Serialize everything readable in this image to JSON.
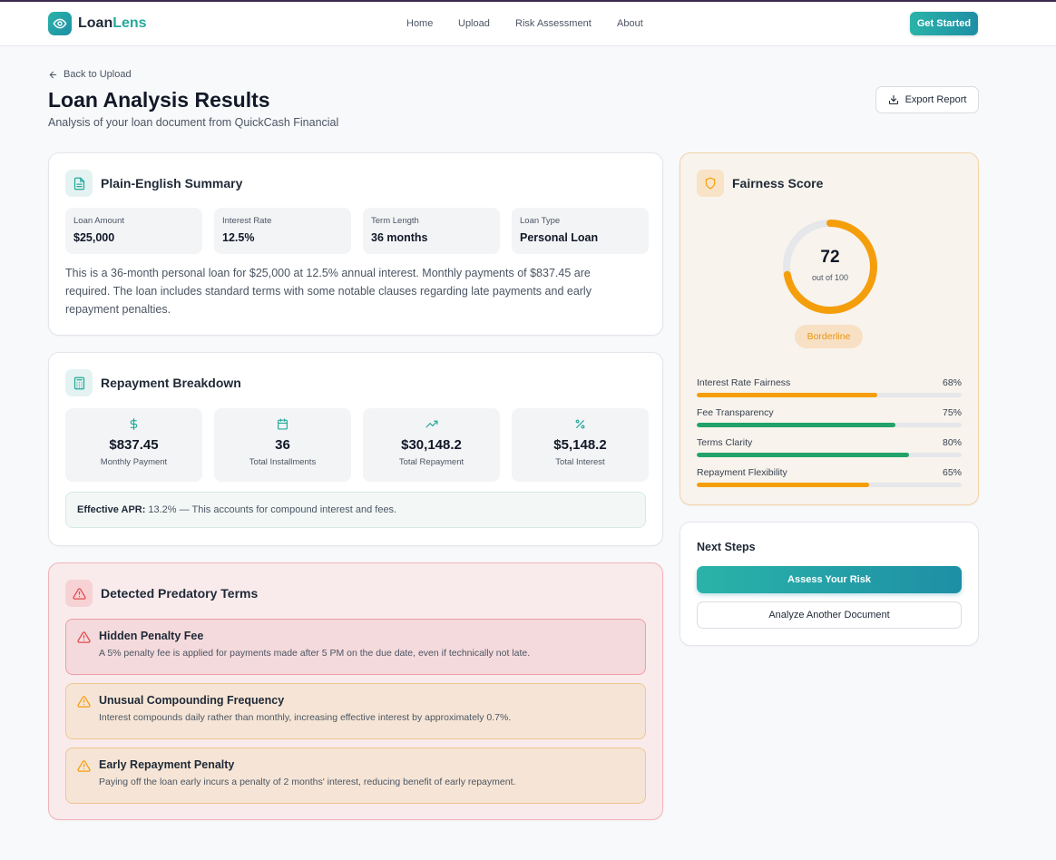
{
  "nav": {
    "brand_first": "Loan",
    "brand_second": "Lens",
    "links": [
      "Home",
      "Upload",
      "Risk Assessment",
      "About"
    ],
    "cta": "Get Started"
  },
  "header": {
    "back": "Back to Upload",
    "title": "Loan Analysis Results",
    "subtitle": "Analysis of your loan document from QuickCash Financial",
    "export": "Export Report"
  },
  "summary": {
    "title": "Plain-English Summary",
    "stats": [
      {
        "label": "Loan Amount",
        "value": "$25,000"
      },
      {
        "label": "Interest Rate",
        "value": "12.5%"
      },
      {
        "label": "Term Length",
        "value": "36 months"
      },
      {
        "label": "Loan Type",
        "value": "Personal Loan"
      }
    ],
    "text": "This is a 36-month personal loan for $25,000 at 12.5% annual interest. Monthly payments of $837.45 are required. The loan includes standard terms with some notable clauses regarding late payments and early repayment penalties."
  },
  "repayment": {
    "title": "Repayment Breakdown",
    "items": [
      {
        "icon": "dollar-icon",
        "value": "$837.45",
        "label": "Monthly Payment"
      },
      {
        "icon": "calendar-icon",
        "value": "36",
        "label": "Total Installments"
      },
      {
        "icon": "trending-up-icon",
        "value": "$30,148.2",
        "label": "Total Repayment"
      },
      {
        "icon": "percent-icon",
        "value": "$5,148.2",
        "label": "Total Interest"
      }
    ],
    "apr_label": "Effective APR:",
    "apr_text": "13.2% — This accounts for compound interest and fees."
  },
  "predatory": {
    "title": "Detected Predatory Terms",
    "terms": [
      {
        "severity": "high",
        "title": "Hidden Penalty Fee",
        "desc": "A 5% penalty fee is applied for payments made after 5 PM on the due date, even if technically not late."
      },
      {
        "severity": "medium",
        "title": "Unusual Compounding Frequency",
        "desc": "Interest compounds daily rather than monthly, increasing effective interest by approximately 0.7%."
      },
      {
        "severity": "medium",
        "title": "Early Repayment Penalty",
        "desc": "Paying off the loan early incurs a penalty of 2 months' interest, reducing benefit of early repayment."
      }
    ]
  },
  "fairness": {
    "title": "Fairness Score",
    "score": "72",
    "score_value": 72,
    "score_sub": "out of 100",
    "badge": "Borderline",
    "metrics": [
      {
        "label": "Interest Rate Fairness",
        "value": "68%",
        "fill": 0.68,
        "color": "#f59e0b"
      },
      {
        "label": "Fee Transparency",
        "value": "75%",
        "fill": 0.75,
        "color": "#22a36a"
      },
      {
        "label": "Terms Clarity",
        "value": "80%",
        "fill": 0.8,
        "color": "#22a36a"
      },
      {
        "label": "Repayment Flexibility",
        "value": "65%",
        "fill": 0.65,
        "color": "#f59e0b"
      }
    ]
  },
  "next_steps": {
    "title": "Next Steps",
    "primary": "Assess Your Risk",
    "secondary": "Analyze Another Document"
  },
  "colors": {
    "accent": "#24a99c",
    "amber": "#f59e0b",
    "danger": "#e5484d"
  }
}
